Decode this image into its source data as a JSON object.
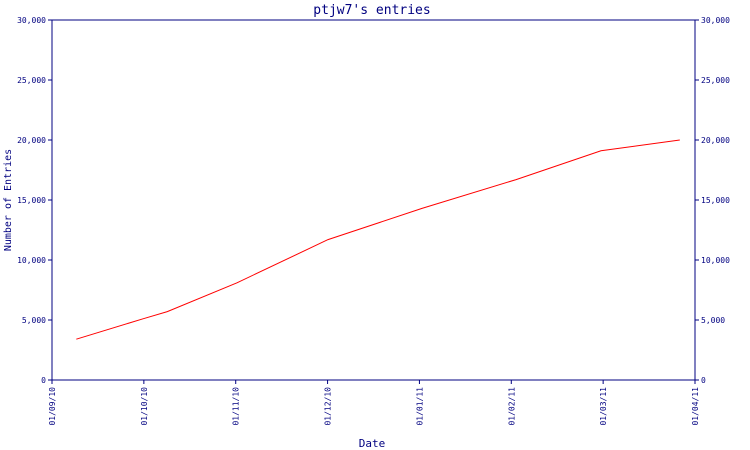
{
  "chart_data": {
    "type": "line",
    "title": "ptjw7's entries",
    "xlabel": "Date",
    "ylabel": "Number of Entries",
    "x_ticks": [
      "01/09/10",
      "01/10/10",
      "01/11/10",
      "01/12/10",
      "01/01/11",
      "01/02/11",
      "01/03/11",
      "01/04/11"
    ],
    "y_ticks": [
      "0",
      "5,000",
      "10,000",
      "15,000",
      "20,000",
      "25,000",
      "30,000"
    ],
    "ylim": [
      0,
      30000
    ],
    "xlim": [
      "2010-09-01",
      "2011-04-01"
    ],
    "grid": false,
    "series": [
      {
        "color": "#ff0000",
        "x": [
          "2010-09-09",
          "2010-10-01",
          "2010-10-09",
          "2010-11-01",
          "2010-12-01",
          "2011-01-01",
          "2011-02-01",
          "2011-03-01",
          "2011-03-27"
        ],
        "values": [
          3400,
          5100,
          5700,
          8100,
          11700,
          14300,
          16700,
          19100,
          20000
        ]
      }
    ]
  },
  "colors": {
    "axis": "#000080",
    "line": "#ff0000"
  }
}
